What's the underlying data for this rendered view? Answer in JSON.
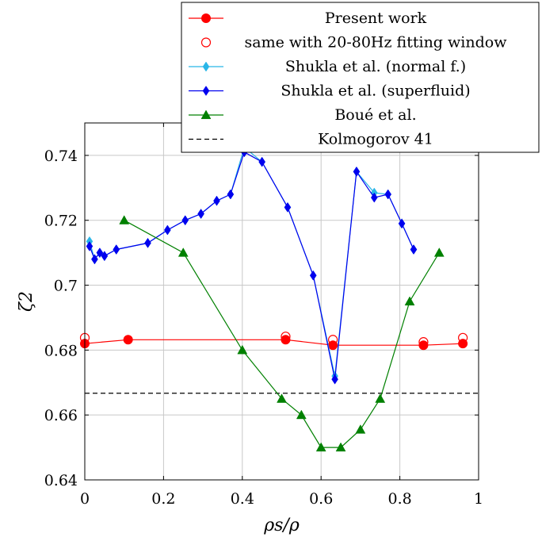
{
  "chart_data": {
    "type": "line",
    "xlabel": "ρs/ρ",
    "ylabel": "ζ2",
    "xlim": [
      0,
      1
    ],
    "ylim": [
      0.64,
      0.75
    ],
    "x_ticks": [
      "0",
      "0.2",
      "0.4",
      "0.6",
      "0.8",
      "1"
    ],
    "y_ticks": [
      "0.64",
      "0.66",
      "0.68",
      "0.7",
      "0.72",
      "0.74"
    ],
    "grid": true,
    "legend_position": "top-right",
    "reference_line": {
      "name": "Kolmogorov 41",
      "y": 0.6667,
      "style": "dashed"
    },
    "series": [
      {
        "name": "Present work",
        "color": "#ff0000",
        "marker": "filled-circle",
        "line": true,
        "points": [
          [
            0.0,
            0.682
          ],
          [
            0.11,
            0.6832
          ],
          [
            0.51,
            0.6832
          ],
          [
            0.63,
            0.6815
          ],
          [
            0.86,
            0.6815
          ],
          [
            0.96,
            0.682
          ]
        ]
      },
      {
        "name": "same with 20-80Hz fitting window",
        "color": "#ff0000",
        "marker": "open-circle",
        "line": false,
        "points": [
          [
            0.0,
            0.6838
          ],
          [
            0.51,
            0.6842
          ],
          [
            0.63,
            0.6832
          ],
          [
            0.86,
            0.6825
          ],
          [
            0.96,
            0.6838
          ]
        ]
      },
      {
        "name": "Shukla et al. (normal f.)",
        "color": "#29b6e8",
        "marker": "diamond",
        "line": true,
        "points": [
          [
            0.012,
            0.7135
          ],
          [
            0.025,
            0.708
          ],
          [
            0.038,
            0.71
          ],
          [
            0.05,
            0.709
          ],
          [
            0.08,
            0.711
          ],
          [
            0.16,
            0.713
          ],
          [
            0.21,
            0.717
          ],
          [
            0.255,
            0.72
          ],
          [
            0.295,
            0.722
          ],
          [
            0.335,
            0.726
          ],
          [
            0.37,
            0.728
          ],
          [
            0.405,
            0.7425
          ],
          [
            0.45,
            0.738
          ],
          [
            0.515,
            0.724
          ],
          [
            0.58,
            0.703
          ],
          [
            0.635,
            0.672
          ],
          [
            0.69,
            0.735
          ],
          [
            0.735,
            0.7285
          ],
          [
            0.77,
            0.728
          ],
          [
            0.805,
            0.719
          ],
          [
            0.835,
            0.711
          ]
        ]
      },
      {
        "name": "Shukla et al. (superfluid)",
        "color": "#0000ee",
        "marker": "diamond",
        "line": true,
        "points": [
          [
            0.012,
            0.712
          ],
          [
            0.025,
            0.708
          ],
          [
            0.038,
            0.71
          ],
          [
            0.05,
            0.709
          ],
          [
            0.08,
            0.711
          ],
          [
            0.16,
            0.713
          ],
          [
            0.21,
            0.717
          ],
          [
            0.255,
            0.72
          ],
          [
            0.295,
            0.722
          ],
          [
            0.335,
            0.726
          ],
          [
            0.37,
            0.728
          ],
          [
            0.405,
            0.741
          ],
          [
            0.45,
            0.738
          ],
          [
            0.515,
            0.724
          ],
          [
            0.58,
            0.703
          ],
          [
            0.635,
            0.671
          ],
          [
            0.69,
            0.735
          ],
          [
            0.735,
            0.727
          ],
          [
            0.77,
            0.728
          ],
          [
            0.805,
            0.719
          ],
          [
            0.835,
            0.711
          ]
        ]
      },
      {
        "name": "Boué et al.",
        "color": "#008000",
        "marker": "triangle",
        "line": true,
        "points": [
          [
            0.1,
            0.72
          ],
          [
            0.25,
            0.71
          ],
          [
            0.4,
            0.68
          ],
          [
            0.5,
            0.665
          ],
          [
            0.55,
            0.66
          ],
          [
            0.6,
            0.65
          ],
          [
            0.65,
            0.65
          ],
          [
            0.7,
            0.6555
          ],
          [
            0.75,
            0.665
          ],
          [
            0.825,
            0.695
          ],
          [
            0.9,
            0.71
          ]
        ]
      }
    ]
  }
}
